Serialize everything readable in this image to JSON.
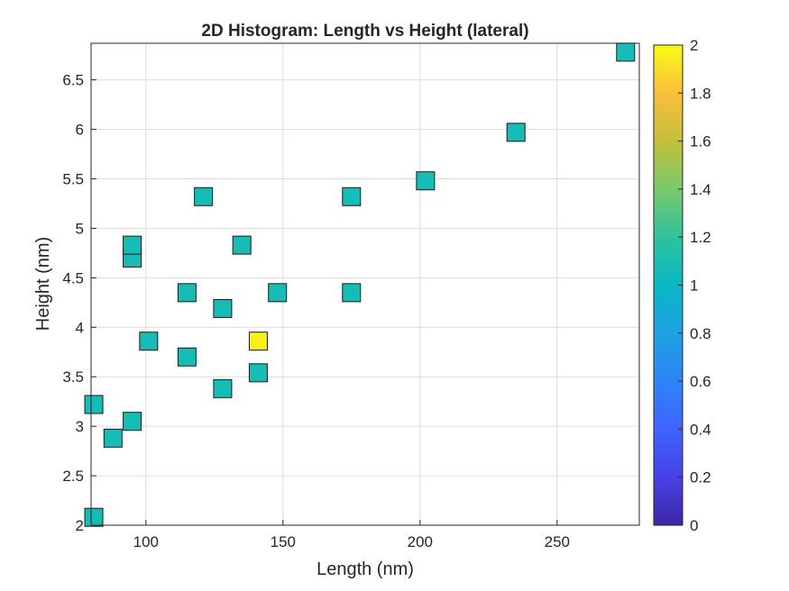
{
  "chart_data": {
    "type": "heatmap",
    "title": "2D Histogram: Length vs Height (lateral)",
    "xlabel": "Length (nm)",
    "ylabel": "Height (nm)",
    "xlim": [
      80,
      280
    ],
    "ylim": [
      2,
      6.87
    ],
    "xticks": [
      100,
      150,
      200,
      250
    ],
    "xtick_labels": [
      "100",
      "150",
      "200",
      "250"
    ],
    "yticks": [
      2,
      2.5,
      3,
      3.5,
      4,
      4.5,
      5,
      5.5,
      6,
      6.5
    ],
    "ytick_labels": [
      "2",
      "2.5",
      "3",
      "3.5",
      "4",
      "4.5",
      "5",
      "5.5",
      "6",
      "6.5"
    ],
    "grid": true,
    "colorbar": {
      "min": 0,
      "max": 2,
      "ticks": [
        0,
        0.2,
        0.4,
        0.6,
        0.8,
        1,
        1.2,
        1.4,
        1.6,
        1.8,
        2
      ],
      "tick_labels": [
        "0",
        "0.2",
        "0.4",
        "0.6",
        "0.8",
        "1",
        "1.2",
        "1.4",
        "1.6",
        "1.8",
        "2"
      ],
      "colormap": "parula"
    },
    "bins": [
      {
        "x": 81,
        "y": 2.08,
        "count": 1
      },
      {
        "x": 81,
        "y": 3.22,
        "count": 1
      },
      {
        "x": 88,
        "y": 2.88,
        "count": 1
      },
      {
        "x": 95,
        "y": 3.05,
        "count": 1
      },
      {
        "x": 95,
        "y": 4.7,
        "count": 1
      },
      {
        "x": 95,
        "y": 4.83,
        "count": 1
      },
      {
        "x": 101,
        "y": 3.86,
        "count": 1
      },
      {
        "x": 115,
        "y": 3.7,
        "count": 1
      },
      {
        "x": 115,
        "y": 4.35,
        "count": 1
      },
      {
        "x": 121,
        "y": 5.32,
        "count": 1
      },
      {
        "x": 128,
        "y": 3.38,
        "count": 1
      },
      {
        "x": 128,
        "y": 4.19,
        "count": 1
      },
      {
        "x": 135,
        "y": 4.83,
        "count": 1
      },
      {
        "x": 141,
        "y": 3.54,
        "count": 1
      },
      {
        "x": 141,
        "y": 3.86,
        "count": 2
      },
      {
        "x": 148,
        "y": 4.35,
        "count": 1
      },
      {
        "x": 175,
        "y": 4.35,
        "count": 1
      },
      {
        "x": 175,
        "y": 5.32,
        "count": 1
      },
      {
        "x": 202,
        "y": 5.48,
        "count": 1
      },
      {
        "x": 235,
        "y": 5.97,
        "count": 1
      },
      {
        "x": 275,
        "y": 6.78,
        "count": 1
      }
    ],
    "colors": {
      "count_1": "#16bdb6",
      "count_2": "#f5f214",
      "grid": "#dcdcdc",
      "axis": "#262626",
      "bin_border": "#1a1a1a"
    }
  }
}
